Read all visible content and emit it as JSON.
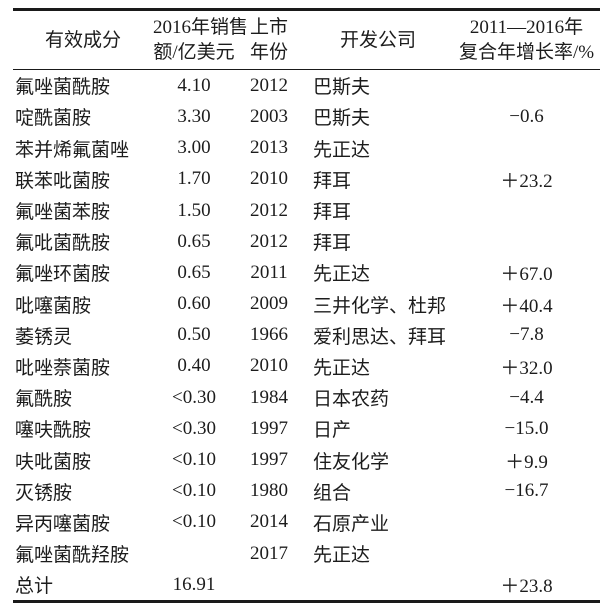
{
  "table": {
    "headers": {
      "col1": "有效成分",
      "col2_line1": "2016年销售",
      "col2_line2": "额/亿美元",
      "col3_line1": "上市",
      "col3_line2": "年份",
      "col4": "开发公司",
      "col5_line1": "2011—2016年",
      "col5_line2": "复合年增长率/%"
    },
    "rows": [
      [
        "氟唑菌酰胺",
        "4.10",
        "2012",
        "巴斯夫",
        ""
      ],
      [
        "啶酰菌胺",
        "3.30",
        "2003",
        "巴斯夫",
        "−0.6"
      ],
      [
        "苯并烯氟菌唑",
        "3.00",
        "2013",
        "先正达",
        ""
      ],
      [
        "联苯吡菌胺",
        "1.70",
        "2010",
        "拜耳",
        "＋23.2"
      ],
      [
        "氟唑菌苯胺",
        "1.50",
        "2012",
        "拜耳",
        ""
      ],
      [
        "氟吡菌酰胺",
        "0.65",
        "2012",
        "拜耳",
        ""
      ],
      [
        "氟唑环菌胺",
        "0.65",
        "2011",
        "先正达",
        "＋67.0"
      ],
      [
        "吡噻菌胺",
        "0.60",
        "2009",
        "三井化学、杜邦",
        "＋40.4"
      ],
      [
        "萎锈灵",
        "0.50",
        "1966",
        "爱利思达、拜耳",
        "−7.8"
      ],
      [
        "吡唑萘菌胺",
        "0.40",
        "2010",
        "先正达",
        "＋32.0"
      ],
      [
        "氟酰胺",
        "<0.30",
        "1984",
        "日本农药",
        "−4.4"
      ],
      [
        "噻呋酰胺",
        "<0.30",
        "1997",
        "日产",
        "−15.0"
      ],
      [
        "呋吡菌胺",
        "<0.10",
        "1997",
        "住友化学",
        "＋9.9"
      ],
      [
        "灭锈胺",
        "<0.10",
        "1980",
        "组合",
        "−16.7"
      ],
      [
        "异丙噻菌胺",
        "<0.10",
        "2014",
        "石原产业",
        ""
      ],
      [
        "氟唑菌酰羟胺",
        "",
        "2017",
        "先正达",
        ""
      ],
      [
        "总计",
        "16.91",
        "",
        "",
        "＋23.8"
      ]
    ]
  },
  "colors": {
    "text": "#1c1c1c",
    "border": "#1a1a1a",
    "background": "#ffffff"
  }
}
